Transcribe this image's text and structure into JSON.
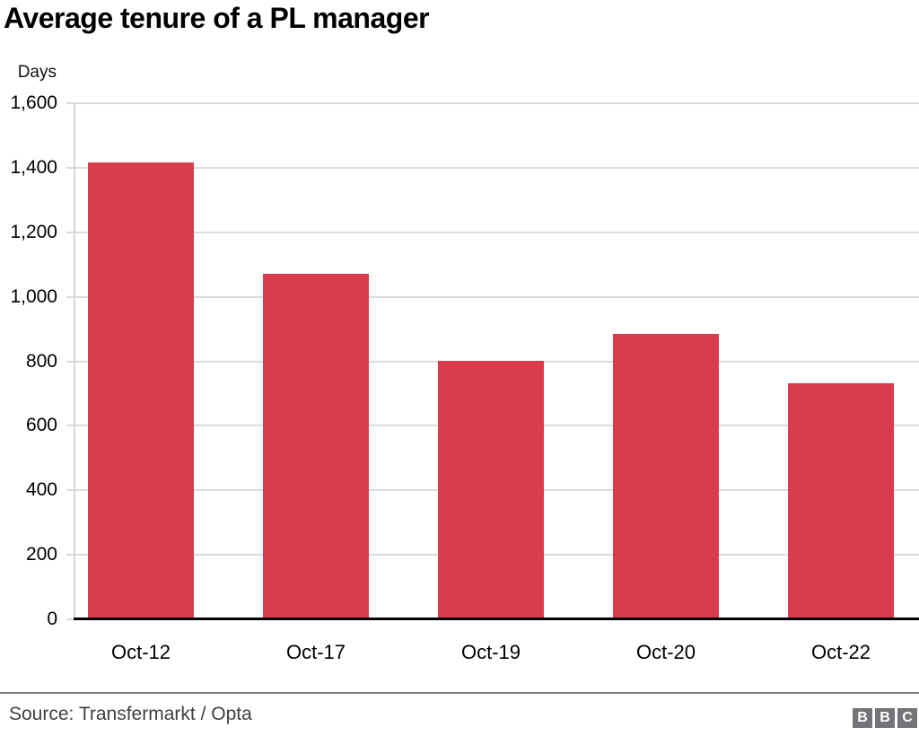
{
  "header": {
    "title": "Average tenure of a PL manager"
  },
  "chart_data": {
    "type": "bar",
    "title": "Average tenure of a PL manager",
    "ylabel": "Days",
    "xlabel": "",
    "categories": [
      "Oct-12",
      "Oct-17",
      "Oct-19",
      "Oct-20",
      "Oct-22"
    ],
    "values": [
      1415,
      1070,
      800,
      885,
      733
    ],
    "ylim": [
      0,
      1600
    ],
    "ytick_step": 200,
    "ytick_labels": [
      "0",
      "200",
      "400",
      "600",
      "800",
      "1,000",
      "1,200",
      "1,400",
      "1,600"
    ],
    "grid": "horizontal gridlines, light gray, behind bars",
    "legend": "none",
    "bar_color": "#d93c4c",
    "gridline_color": "#dbdbdb",
    "baseline_color": "#000000"
  },
  "footer": {
    "source": "Source: Transfermarkt / Opta",
    "logo_letters": [
      "B",
      "B",
      "C"
    ],
    "logo_color": "#737378"
  }
}
